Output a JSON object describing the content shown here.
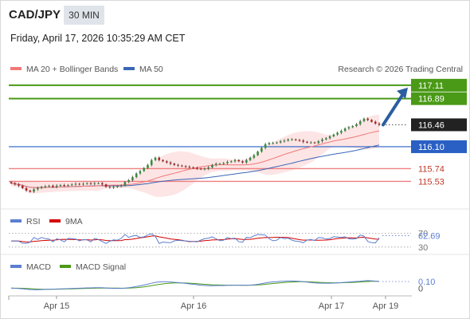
{
  "header": {
    "symbol": "CAD/JPY",
    "timeframe": "30 MIN",
    "datetime": "Friday, April 17, 2026 10:35:29 AM CET"
  },
  "legend": {
    "ma20": "MA 20 + Bollinger Bands",
    "ma50": "MA 50",
    "credit": "Research © 2026 Trading Central"
  },
  "colors": {
    "candle_up": "#3d8a3d",
    "candle_down": "#b22222",
    "ma20": "#f07878",
    "ma50": "#3a66b5",
    "bollinger_fill": "#fcdcdc",
    "resistance": "#4a9a17",
    "pivot": "#2a5fc4",
    "support": "#f08080",
    "last_price": "#222222",
    "arrow": "#2b5e9e",
    "rsi": "#5b7fd0",
    "rsi_ma": "#d40000",
    "macd": "#5b7fd0",
    "macd_signal": "#4a9a17"
  },
  "chart_data": [
    {
      "type": "candlestick",
      "price_range": [
        115.3,
        117.2
      ],
      "x_ticks": [
        "Apr 15",
        "Apr 16",
        "Apr 17",
        "Apr 19"
      ],
      "levels": [
        {
          "name": "resistance-2",
          "value": 117.11,
          "label": "117.11",
          "style": "green"
        },
        {
          "name": "resistance-1",
          "value": 116.89,
          "label": "116.89",
          "style": "green"
        },
        {
          "name": "last-price",
          "value": 116.46,
          "label": "116.46",
          "style": "dark"
        },
        {
          "name": "pivot",
          "value": 116.1,
          "label": "116.10",
          "style": "blue"
        },
        {
          "name": "support-1",
          "value": 115.74,
          "label": "115.74",
          "style": "red"
        },
        {
          "name": "support-2",
          "value": 115.53,
          "label": "115.53",
          "style": "red"
        }
      ],
      "close": [
        115.5,
        115.48,
        115.46,
        115.42,
        115.38,
        115.36,
        115.4,
        115.42,
        115.44,
        115.45,
        115.46,
        115.44,
        115.46,
        115.47,
        115.46,
        115.47,
        115.48,
        115.49,
        115.48,
        115.49,
        115.5,
        115.49,
        115.5,
        115.5,
        115.48,
        115.44,
        115.43,
        115.44,
        115.45,
        115.46,
        115.52,
        115.55,
        115.6,
        115.66,
        115.7,
        115.75,
        115.8,
        115.88,
        115.92,
        115.88,
        115.86,
        115.84,
        115.82,
        115.8,
        115.79,
        115.78,
        115.77,
        115.76,
        115.75,
        115.74,
        115.73,
        115.74,
        115.76,
        115.8,
        115.82,
        115.82,
        115.83,
        115.85,
        115.86,
        115.88,
        115.86,
        115.84,
        115.88,
        115.92,
        115.96,
        116.02,
        116.08,
        116.14,
        116.16,
        116.16,
        116.17,
        116.19,
        116.2,
        116.22,
        116.22,
        116.21,
        116.2,
        116.18,
        116.17,
        116.17,
        116.16,
        116.19,
        116.22,
        116.24,
        116.27,
        116.3,
        116.33,
        116.36,
        116.4,
        116.42,
        116.44,
        116.47,
        116.52,
        116.56,
        116.54,
        116.51,
        116.48,
        116.46
      ],
      "rsi": {
        "label": "RSI",
        "value": 62.69,
        "ma_label": "9MA",
        "ticks": [
          70,
          30
        ]
      },
      "macd": {
        "label": "MACD",
        "signal_label": "MACD Signal",
        "value": 0.1,
        "zero": 0
      }
    }
  ]
}
